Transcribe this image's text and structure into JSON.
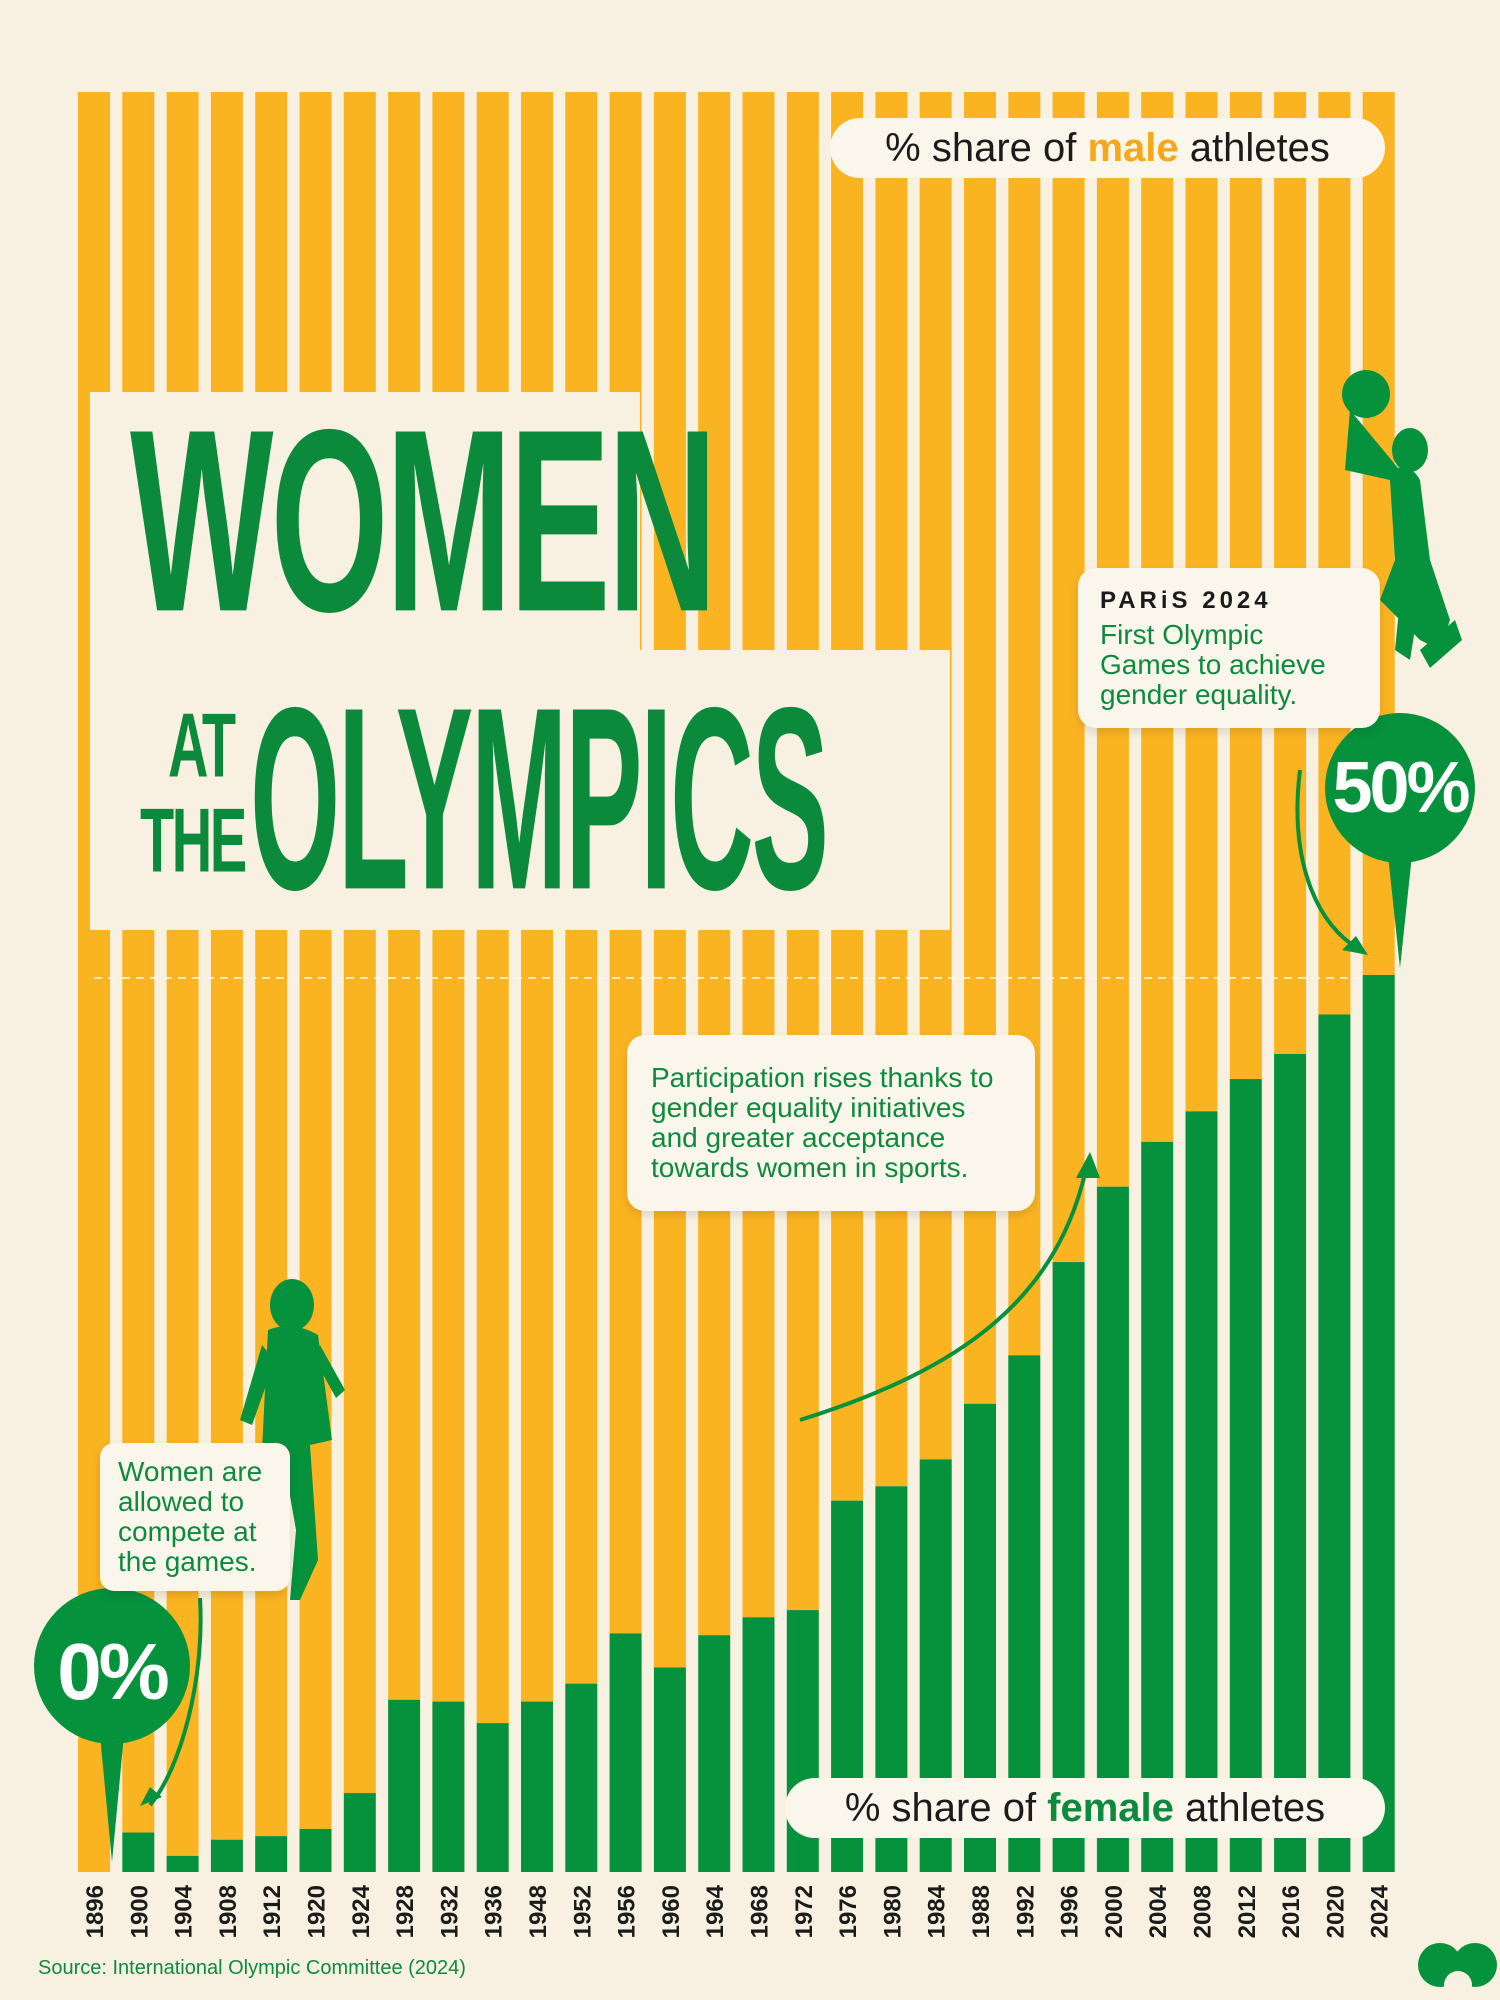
{
  "title": {
    "word1": "WOMEN",
    "at": "AT",
    "the": "THE",
    "word2": "OLYMPICS"
  },
  "legend": {
    "male_prefix": "% share of ",
    "male_word": "male",
    "male_suffix": " athletes",
    "female_prefix": "% share of ",
    "female_word": "female",
    "female_suffix": " athletes"
  },
  "annotations": {
    "start_note": "Women are allowed to compete at the games.",
    "start_badge": "0%",
    "rise_note": "Participation rises thanks to gender equality initiatives and greater acceptance towards women in sports.",
    "paris_heading": "PARiS 2024",
    "paris_note": "First Olympic Games to achieve gender equality.",
    "end_badge": "50%"
  },
  "source": "Source: International Olympic Committee (2024)",
  "colors": {
    "male": "#fbb421",
    "female": "#06913c",
    "background": "#f8f1e1"
  },
  "icons": [
    "athlete-silhouette-icon",
    "runner-silhouette-icon",
    "basketball-player-silhouette-icon",
    "logo-icon"
  ],
  "chart_data": {
    "type": "bar",
    "stacked": true,
    "categories": [
      "1896",
      "1900",
      "1904",
      "1908",
      "1912",
      "1920",
      "1924",
      "1928",
      "1932",
      "1936",
      "1948",
      "1952",
      "1956",
      "1960",
      "1964",
      "1968",
      "1972",
      "1976",
      "1980",
      "1984",
      "1988",
      "1992",
      "1996",
      "2000",
      "2004",
      "2008",
      "2012",
      "2016",
      "2020",
      "2024"
    ],
    "series": [
      {
        "name": "female",
        "values": [
          0,
          2.2,
          0.9,
          1.8,
          2.0,
          2.4,
          4.4,
          9.6,
          9.5,
          8.3,
          9.5,
          10.5,
          13.3,
          11.4,
          13.2,
          14.2,
          14.6,
          20.7,
          21.5,
          23.0,
          26.1,
          28.8,
          34.0,
          38.2,
          40.7,
          42.4,
          44.2,
          45.6,
          47.8,
          50.0
        ]
      },
      {
        "name": "male",
        "values": [
          100,
          97.8,
          99.1,
          98.2,
          98.0,
          97.6,
          95.6,
          90.4,
          90.5,
          91.7,
          90.5,
          89.5,
          86.7,
          88.6,
          86.8,
          85.8,
          85.4,
          79.3,
          78.5,
          77.0,
          73.9,
          71.2,
          66.0,
          61.8,
          59.3,
          57.6,
          55.8,
          54.4,
          52.2,
          50.0
        ]
      }
    ],
    "ylim": [
      0,
      100
    ]
  }
}
